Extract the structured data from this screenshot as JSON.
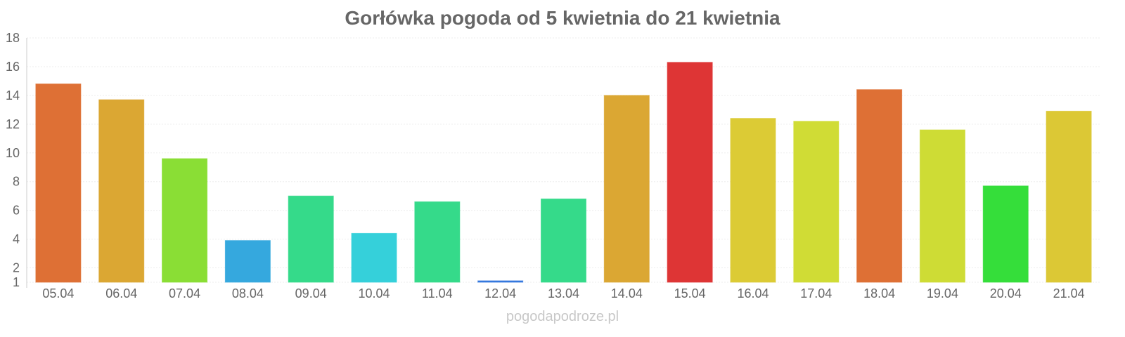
{
  "chart_data": {
    "type": "bar",
    "title": "Gorłówka pogoda od 5 kwietnia do 21 kwietnia",
    "xlabel": "",
    "ylabel": "",
    "ylim": [
      1,
      18
    ],
    "yticks": [
      1,
      2,
      4,
      6,
      8,
      10,
      12,
      14,
      16,
      18
    ],
    "grid": true,
    "categories": [
      "05.04",
      "06.04",
      "07.04",
      "08.04",
      "09.04",
      "10.04",
      "11.04",
      "12.04",
      "13.04",
      "14.04",
      "15.04",
      "16.04",
      "17.04",
      "18.04",
      "19.04",
      "20.04",
      "21.04"
    ],
    "values": [
      14.8,
      13.7,
      9.6,
      3.9,
      7.0,
      4.4,
      6.6,
      1.1,
      6.8,
      14.0,
      16.3,
      12.4,
      12.2,
      14.4,
      11.6,
      7.7,
      12.9
    ],
    "colors": [
      "#de7035",
      "#dba733",
      "#8ade35",
      "#35a8de",
      "#35da8a",
      "#35d0da",
      "#35da8a",
      "#3578de",
      "#35da8a",
      "#dba733",
      "#de3535",
      "#dccb35",
      "#d0dc35",
      "#de7035",
      "#cedc35",
      "#35de3a",
      "#dcc835"
    ]
  },
  "watermark": "pogodapodroze.pl"
}
